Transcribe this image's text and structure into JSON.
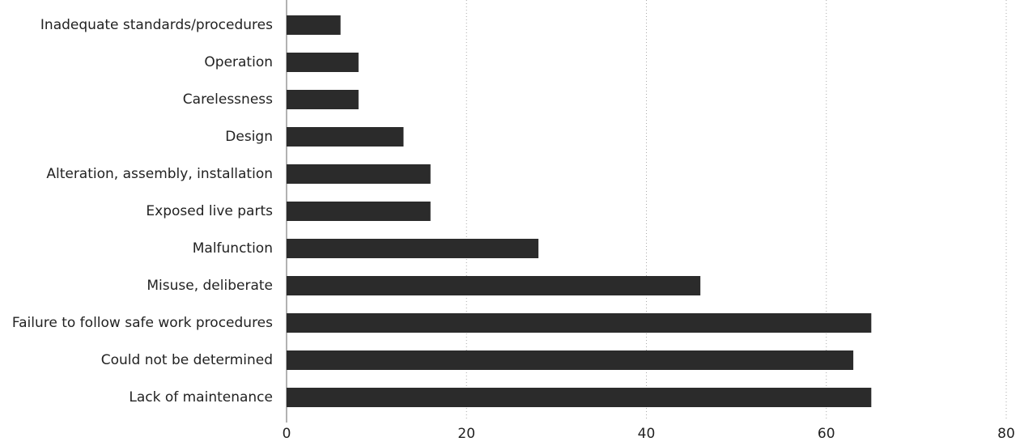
{
  "chart_data": {
    "type": "bar",
    "orientation": "horizontal",
    "categories": [
      "Inadequate standards/procedures",
      "Operation",
      "Carelessness",
      "Design",
      "Alteration, assembly, installation",
      "Exposed live parts",
      "Malfunction",
      "Misuse, deliberate",
      "Failure to follow safe work procedures",
      "Could not be determined",
      "Lack of maintenance"
    ],
    "values": [
      6,
      8,
      8,
      13,
      16,
      16,
      28,
      46,
      65,
      63,
      65
    ],
    "color": "#2b2b2b",
    "xlim": [
      0,
      80
    ],
    "xticks": [
      0,
      20,
      40,
      60,
      80
    ],
    "grid": true
  }
}
